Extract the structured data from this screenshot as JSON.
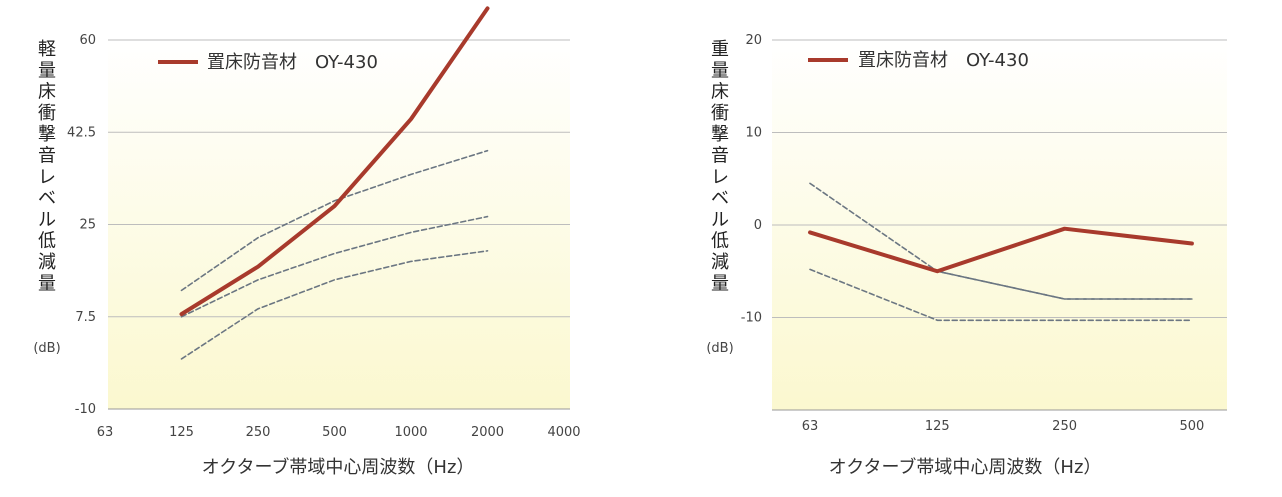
{
  "chart_data": [
    {
      "type": "line",
      "x_categories": [
        "63",
        "125",
        "250",
        "500",
        "1000",
        "2000",
        "4000"
      ],
      "y_ticks": [
        "60",
        "42.5",
        "25",
        "7.5",
        "-10"
      ],
      "ylim": [
        -10,
        60
      ],
      "ylabel": "軽量床衝撃音レベル低減量",
      "unit": "(dB)",
      "xlabel": "オクターブ帯域中心周波数（Hz）",
      "legend": {
        "label": "置床防音材　OY-430",
        "placement": "top-left"
      },
      "grid": true,
      "colors": {
        "main": "#a83a2c",
        "reference": "#6b7682",
        "grid": "#bdbdbd"
      },
      "series": [
        {
          "name": "置床防音材　OY-430",
          "style": "solid",
          "x": [
            "125",
            "250",
            "500",
            "1000",
            "2000"
          ],
          "values": [
            8,
            17,
            28.5,
            45,
            66
          ]
        },
        {
          "style": "dashed",
          "x": [
            "125",
            "250",
            "500",
            "1000",
            "2000"
          ],
          "values": [
            12.5,
            22.5,
            29.5,
            34.5,
            39
          ]
        },
        {
          "style": "dashed",
          "x": [
            "125",
            "250",
            "500",
            "1000",
            "2000"
          ],
          "values": [
            7.5,
            14.5,
            19.5,
            23.5,
            26.5
          ]
        },
        {
          "style": "dashed",
          "x": [
            "125",
            "250",
            "500",
            "1000",
            "2000"
          ],
          "values": [
            -0.5,
            9,
            14.5,
            18,
            20
          ]
        }
      ]
    },
    {
      "type": "line",
      "x_categories": [
        "63",
        "125",
        "250",
        "500"
      ],
      "y_ticks": [
        "20",
        "10",
        "0",
        "-10"
      ],
      "ylim": [
        -20,
        20
      ],
      "ylabel": "重量床衝撃音レベル低減量",
      "unit": "(dB)",
      "xlabel": "オクターブ帯域中心周波数（Hz）",
      "legend": {
        "label": "置床防音材　OY-430",
        "placement": "top-left"
      },
      "grid": true,
      "colors": {
        "main": "#a83a2c",
        "reference": "#6b7682",
        "grid": "#bdbdbd"
      },
      "series": [
        {
          "name": "置床防音材　OY-430",
          "style": "solid",
          "x": [
            "63",
            "125",
            "250",
            "500"
          ],
          "values": [
            -0.8,
            -5,
            -0.4,
            -2
          ]
        },
        {
          "style": "dashed",
          "x": [
            "63",
            "125",
            "250",
            "500"
          ],
          "values": [
            4.5,
            -5,
            -8,
            -8
          ]
        },
        {
          "style": "dashed",
          "x": [
            "63",
            "125",
            "250",
            "500"
          ],
          "values": [
            -0.8,
            -5,
            -8,
            -8
          ]
        },
        {
          "style": "dashed",
          "x": [
            "63",
            "125",
            "250",
            "500"
          ],
          "values": [
            -4.8,
            -10.3,
            -10.3,
            -10.3
          ]
        }
      ]
    }
  ]
}
